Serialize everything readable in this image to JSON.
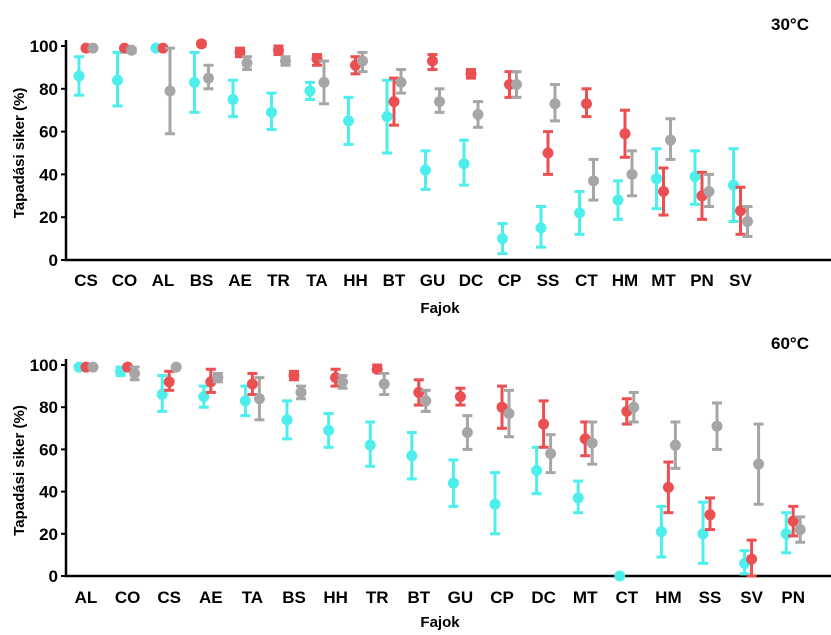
{
  "chart_data": [
    {
      "type": "scatter",
      "title": "30°C",
      "xlabel": "Fajok",
      "ylabel": "Tapadási siker (%)",
      "ylim": [
        0,
        100
      ],
      "yticks": [
        0,
        20,
        40,
        60,
        80,
        100
      ],
      "grid": false,
      "error_bars": true,
      "categories": [
        "CS",
        "CO",
        "AL",
        "BS",
        "AE",
        "TR",
        "TA",
        "HH",
        "BT",
        "GU",
        "DC",
        "CP",
        "SS",
        "CT",
        "HM",
        "MT",
        "PN",
        "SV"
      ],
      "series": [
        {
          "color": "#4eeeed",
          "values": [
            86,
            84,
            99,
            83,
            75,
            69,
            79,
            65,
            67,
            42,
            45,
            10,
            15,
            22,
            28,
            38,
            39,
            35
          ],
          "err_low": [
            77,
            72,
            99,
            69,
            67,
            61,
            75,
            54,
            50,
            33,
            35,
            3,
            6,
            12,
            19,
            24,
            26,
            18
          ],
          "err_high": [
            95,
            97,
            99,
            97,
            84,
            78,
            83,
            76,
            84,
            51,
            56,
            17,
            25,
            32,
            37,
            52,
            51,
            52
          ]
        },
        {
          "color": "#ec4f52",
          "values": [
            99,
            99,
            99,
            101,
            97,
            98,
            94,
            91,
            74,
            93,
            87,
            82,
            50,
            73,
            59,
            32,
            30,
            23
          ],
          "err_low": [
            99,
            99,
            99,
            100,
            95,
            96,
            91,
            87,
            63,
            89,
            85,
            76,
            40,
            67,
            48,
            21,
            19,
            12
          ],
          "err_high": [
            99,
            99,
            99,
            102,
            99,
            100,
            96,
            95,
            85,
            96,
            89,
            88,
            60,
            80,
            70,
            43,
            41,
            34
          ]
        },
        {
          "color": "#a6a6a6",
          "values": [
            99,
            98,
            79,
            85,
            92,
            93,
            83,
            93,
            83,
            74,
            68,
            82,
            73,
            37,
            40,
            56,
            32,
            18
          ],
          "err_low": [
            99,
            97,
            59,
            80,
            89,
            91,
            73,
            88,
            78,
            69,
            62,
            76,
            65,
            28,
            30,
            47,
            25,
            11
          ],
          "err_high": [
            99,
            99,
            99,
            91,
            95,
            95,
            93,
            97,
            89,
            80,
            74,
            88,
            82,
            47,
            51,
            66,
            40,
            25
          ]
        }
      ],
      "annotations": [
        "30°C"
      ]
    },
    {
      "type": "scatter",
      "title": "60°C",
      "xlabel": "Fajok",
      "ylabel": "Tapadási siker (%)",
      "ylim": [
        0,
        100
      ],
      "yticks": [
        0,
        20,
        40,
        60,
        80,
        100
      ],
      "grid": false,
      "error_bars": true,
      "categories": [
        "AL",
        "CO",
        "CS",
        "AE",
        "TA",
        "BS",
        "HH",
        "TR",
        "BT",
        "GU",
        "CP",
        "DC",
        "MT",
        "CT",
        "HM",
        "SS",
        "SV",
        "PN"
      ],
      "series": [
        {
          "color": "#4eeeed",
          "values": [
            99,
            97,
            86,
            85,
            83,
            74,
            69,
            62,
            57,
            44,
            34,
            50,
            37,
            0,
            21,
            20,
            6,
            20
          ],
          "err_low": [
            99,
            95,
            78,
            80,
            76,
            65,
            61,
            52,
            46,
            33,
            20,
            39,
            30,
            0,
            9,
            6,
            1,
            11
          ],
          "err_high": [
            99,
            99,
            95,
            90,
            90,
            83,
            77,
            73,
            68,
            55,
            49,
            61,
            45,
            0,
            33,
            35,
            12,
            30
          ]
        },
        {
          "color": "#ec4f52",
          "values": [
            99,
            99,
            92,
            92,
            91,
            95,
            94,
            98,
            87,
            85,
            80,
            72,
            65,
            78,
            42,
            29,
            8,
            26
          ],
          "err_low": [
            99,
            99,
            88,
            87,
            86,
            93,
            90,
            97,
            81,
            81,
            70,
            61,
            57,
            72,
            30,
            22,
            0,
            19
          ],
          "err_high": [
            99,
            99,
            97,
            98,
            96,
            97,
            98,
            100,
            93,
            89,
            90,
            83,
            73,
            84,
            54,
            37,
            17,
            33
          ]
        },
        {
          "color": "#a6a6a6",
          "values": [
            99,
            96,
            99,
            94,
            84,
            87,
            92,
            91,
            83,
            68,
            77,
            58,
            63,
            80,
            62,
            71,
            53,
            22
          ],
          "err_low": [
            99,
            93,
            99,
            92,
            74,
            84,
            89,
            86,
            78,
            60,
            66,
            49,
            53,
            73,
            51,
            60,
            34,
            16
          ],
          "err_high": [
            99,
            99,
            99,
            96,
            94,
            90,
            95,
            96,
            88,
            76,
            88,
            67,
            73,
            87,
            73,
            82,
            72,
            28
          ]
        }
      ],
      "annotations": [
        "60°C"
      ]
    }
  ]
}
